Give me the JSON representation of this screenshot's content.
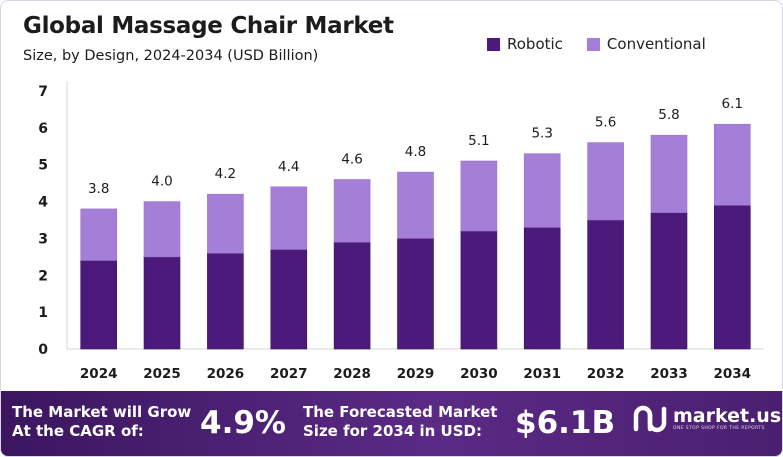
{
  "header": {
    "title": "Global Massage Chair Market",
    "subtitle": "Size, by Design, 2024-2034 (USD Billion)"
  },
  "chart_data": {
    "type": "bar",
    "stacked": true,
    "categories": [
      "2024",
      "2025",
      "2026",
      "2027",
      "2028",
      "2029",
      "2030",
      "2031",
      "2032",
      "2033",
      "2034"
    ],
    "series": [
      {
        "name": "Robotic",
        "color": "#4b1a7b",
        "values": [
          2.4,
          2.5,
          2.6,
          2.7,
          2.9,
          3.0,
          3.2,
          3.3,
          3.5,
          3.7,
          3.9
        ]
      },
      {
        "name": "Conventional",
        "color": "#a57ed8",
        "values": [
          1.4,
          1.5,
          1.6,
          1.7,
          1.7,
          1.8,
          1.9,
          2.0,
          2.1,
          2.1,
          2.2
        ]
      }
    ],
    "totals": [
      "3.8",
      "4.0",
      "4.2",
      "4.4",
      "4.6",
      "4.8",
      "5.1",
      "5.3",
      "5.6",
      "5.8",
      "6.1"
    ],
    "yticks": [
      0,
      1,
      2,
      3,
      4,
      5,
      6,
      7
    ],
    "ylim": [
      0,
      7
    ],
    "grid": false,
    "legend_position": "top-right"
  },
  "footer": {
    "cagr_text_line1": "The Market will Grow",
    "cagr_text_line2": "At the CAGR of:",
    "cagr_value": "4.9%",
    "forecast_text_line1": "The Forecasted Market",
    "forecast_text_line2": "Size for 2034 in USD:",
    "forecast_value": "$6.1B",
    "brand_name": "market.us",
    "brand_tagline": "ONE STOP SHOP FOR THE REPORTS",
    "colors": {
      "banner": "#4a1f70"
    }
  }
}
